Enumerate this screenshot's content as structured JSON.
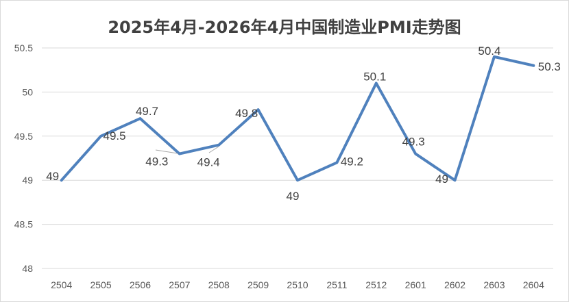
{
  "chart_data": {
    "type": "line",
    "title": "2025年4月-2026年4月中国制造业PMI走势图",
    "categories": [
      "2504",
      "2505",
      "2506",
      "2507",
      "2508",
      "2509",
      "2510",
      "2511",
      "2512",
      "2601",
      "2602",
      "2603",
      "2604"
    ],
    "values": [
      49,
      49.5,
      49.7,
      49.3,
      49.4,
      49.8,
      49,
      49.2,
      50.1,
      49.3,
      49,
      50.4,
      50.3
    ],
    "data_labels": [
      "49",
      "49.5",
      "49.7",
      "49.3",
      "49.4",
      "49.8",
      "49",
      "49.2",
      "50.1",
      "49.3",
      "49",
      "50.4",
      "50.3"
    ],
    "yticks": [
      "48",
      "48.5",
      "49",
      "49.5",
      "50",
      "50.5"
    ],
    "ylim": [
      48,
      50.5
    ],
    "grid": true,
    "legend": "none",
    "line_color": "#4f81bd"
  }
}
